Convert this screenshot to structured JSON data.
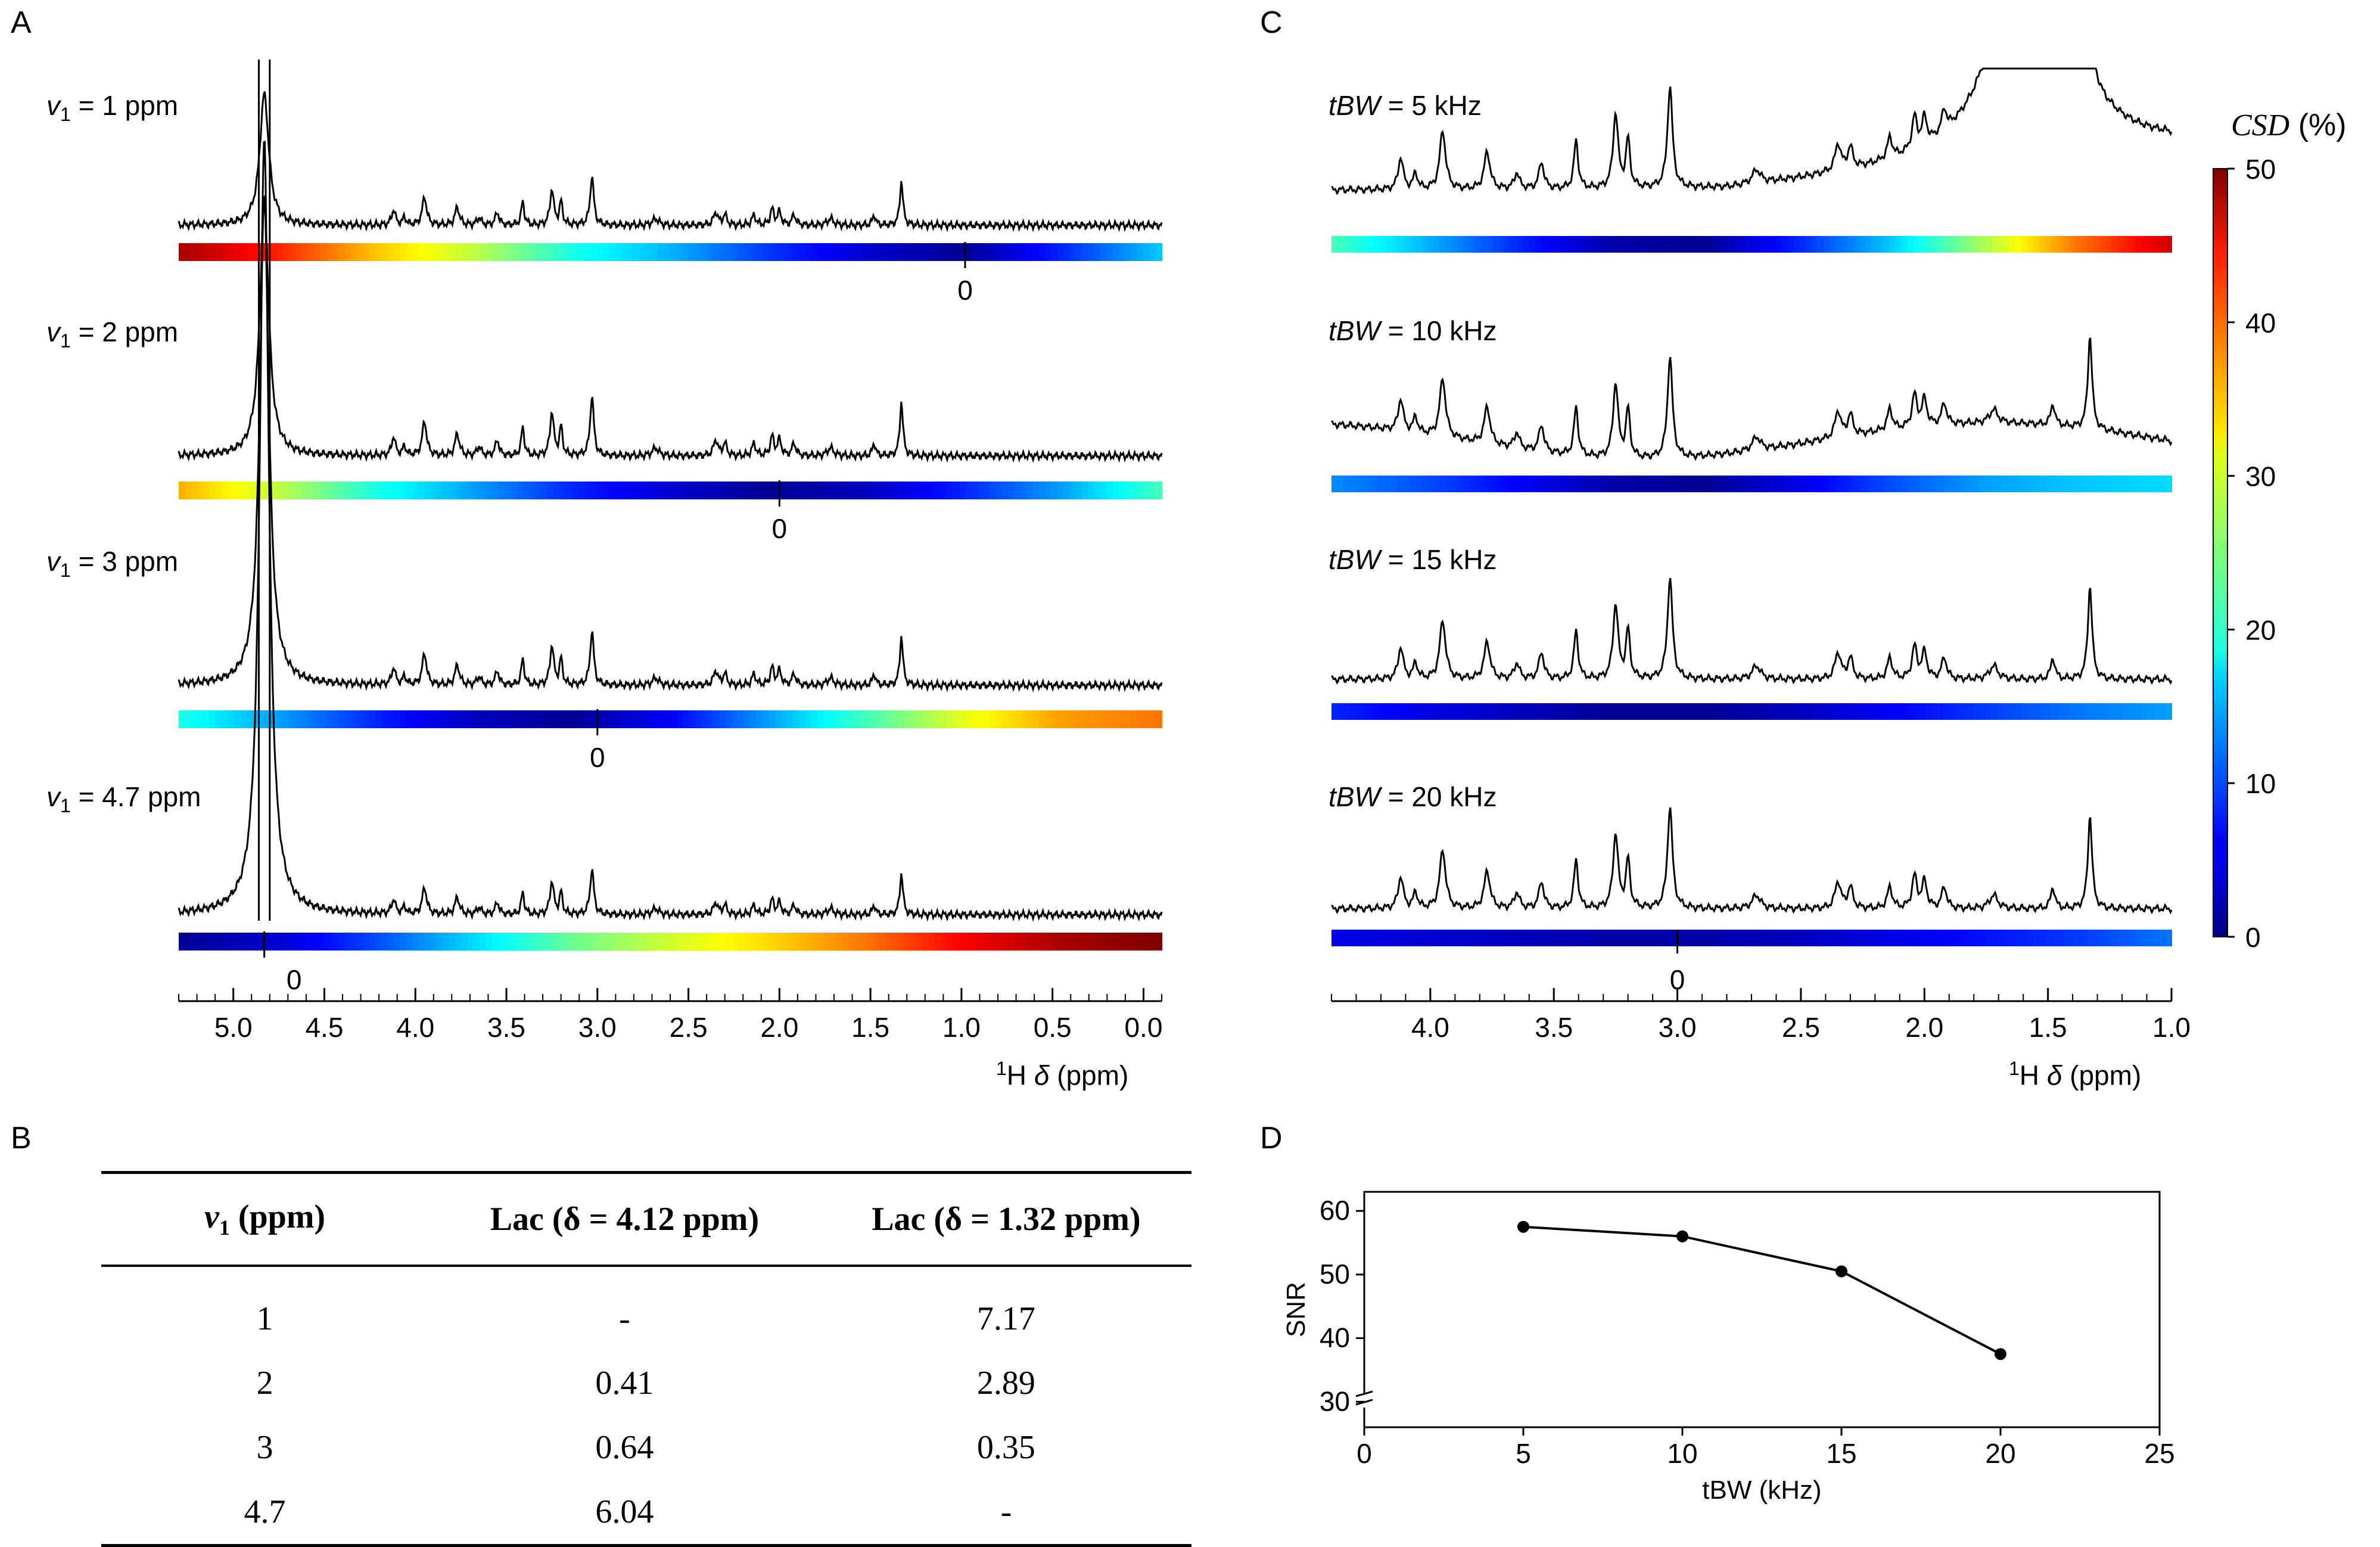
{
  "panels": {
    "A": {
      "letter": "A"
    },
    "B": {
      "letter": "B"
    },
    "C": {
      "letter": "C"
    },
    "D": {
      "letter": "D"
    }
  },
  "panel_a": {
    "traces": [
      {
        "label_var": "v",
        "label_sub": "1",
        "label_text": "= 1 ppm",
        "zero_label": "0",
        "zero_ppm": 0.98
      },
      {
        "label_var": "v",
        "label_sub": "1",
        "label_text": "= 2 ppm",
        "zero_label": "0",
        "zero_ppm": 2.0
      },
      {
        "label_var": "v",
        "label_sub": "1",
        "label_text": "= 3 ppm",
        "zero_label": "0",
        "zero_ppm": 3.0
      },
      {
        "label_var": "v",
        "label_sub": "1",
        "label_text": "= 4.7 ppm",
        "zero_label": "0",
        "zero_ppm": 4.83
      }
    ],
    "x_ticks": [
      "5.0",
      "4.5",
      "4.0",
      "3.5",
      "3.0",
      "2.5",
      "2.0",
      "1.5",
      "1.0",
      "0.5",
      "0.0"
    ],
    "x_tick_values": [
      5.0,
      4.5,
      4.0,
      3.5,
      3.0,
      2.5,
      2.0,
      1.5,
      1.0,
      0.5,
      0.0
    ],
    "x_range": [
      5.3,
      -0.1
    ],
    "x_label_sup": "1",
    "x_label_nucleus": "H",
    "x_label_delta": "δ",
    "x_label_unit": "(ppm)"
  },
  "panel_c": {
    "traces": [
      {
        "label_var": "tBW",
        "label_text": "= 5 kHz",
        "csd_profile": [
          22,
          15,
          8,
          2,
          1,
          8,
          16,
          27,
          38,
          46
        ]
      },
      {
        "label_var": "tBW",
        "label_text": "= 10 kHz",
        "csd_profile": [
          13,
          10,
          6,
          2,
          1,
          5,
          10,
          14,
          16,
          17
        ]
      },
      {
        "label_var": "tBW",
        "label_text": "= 15 kHz",
        "csd_profile": [
          8,
          5,
          3,
          1,
          1,
          3,
          6,
          9,
          12,
          14
        ]
      },
      {
        "label_var": "tBW",
        "label_text": "= 20 kHz",
        "csd_profile": [
          5,
          4,
          3,
          2,
          2,
          3,
          5,
          7,
          9,
          12
        ]
      }
    ],
    "zero_label": "0",
    "x_ticks": [
      "4.0",
      "3.5",
      "3.0",
      "2.5",
      "2.0",
      "1.5",
      "1.0"
    ],
    "x_tick_values": [
      4.0,
      3.5,
      3.0,
      2.5,
      2.0,
      1.5,
      1.0
    ],
    "x_range": [
      4.4,
      1.0
    ],
    "x_label_sup": "1",
    "x_label_nucleus": "H",
    "x_label_delta": "δ",
    "x_label_unit": "(ppm)"
  },
  "colorbar": {
    "title_var": "CSD",
    "title_unit": "(%)",
    "ticks": [
      "50",
      "40",
      "30",
      "20",
      "10",
      "0"
    ],
    "tick_values": [
      50,
      40,
      30,
      20,
      10,
      0
    ],
    "range": [
      0,
      50
    ],
    "colormap": "jet"
  },
  "panel_a_csd_profiles": [
    [
      48,
      42,
      34,
      28,
      20,
      15,
      9,
      4,
      1,
      8,
      16
    ],
    [
      35,
      28,
      20,
      14,
      8,
      4,
      1,
      3,
      8,
      14,
      22
    ],
    [
      20,
      14,
      8,
      3,
      1,
      6,
      14,
      22,
      30,
      36,
      38
    ],
    [
      1,
      4,
      10,
      17,
      24,
      29,
      33,
      38,
      44,
      48,
      50
    ]
  ],
  "table": {
    "headers": [
      {
        "var": "v",
        "sub": "1",
        "text": "(ppm)"
      },
      {
        "text": "Lac (δ = 4.12 ppm)"
      },
      {
        "text": "Lac (δ = 1.32 ppm)"
      }
    ],
    "rows": [
      [
        "1",
        "-",
        "7.17"
      ],
      [
        "2",
        "0.41",
        "2.89"
      ],
      [
        "3",
        "0.64",
        "0.35"
      ],
      [
        "4.7",
        "6.04",
        "-"
      ]
    ]
  },
  "chart_data": {
    "type": "line",
    "title": "",
    "xlabel": "tBW (kHz)",
    "ylabel": "SNR",
    "x": [
      5,
      10,
      15,
      20
    ],
    "y": [
      57.5,
      56,
      50.5,
      37.5
    ],
    "xlim": [
      0,
      25
    ],
    "ylim": [
      26,
      63
    ],
    "x_ticks": [
      0,
      5,
      10,
      15,
      20,
      25
    ],
    "y_ticks": [
      30,
      40,
      50,
      60
    ],
    "axis_break": "y",
    "markers": "filled-circle",
    "color": "#000000"
  }
}
